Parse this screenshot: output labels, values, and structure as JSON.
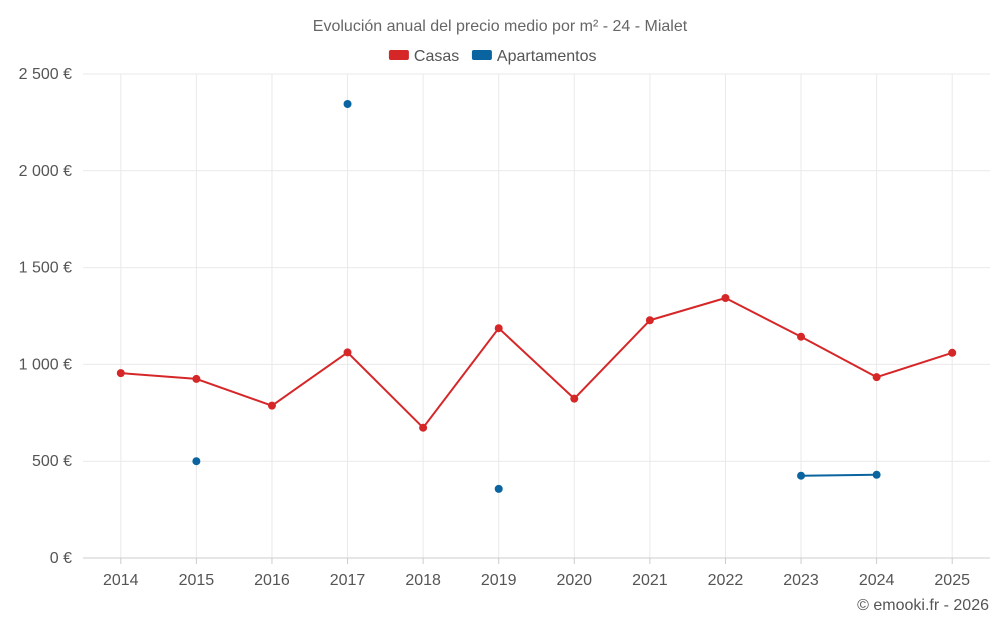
{
  "chart_data": {
    "type": "line",
    "title": "Evolución anual del precio medio por m² - 24 - Mialet",
    "categories": [
      "2014",
      "2015",
      "2016",
      "2017",
      "2018",
      "2019",
      "2020",
      "2021",
      "2022",
      "2023",
      "2024",
      "2025"
    ],
    "series": [
      {
        "name": "Casas",
        "color": "#d62728",
        "values": [
          955,
          925,
          787,
          1062,
          673,
          1187,
          823,
          1228,
          1343,
          1143,
          934,
          1060
        ]
      },
      {
        "name": "Apartamentos",
        "color": "#0a64a0",
        "values": [
          null,
          500,
          null,
          2345,
          null,
          357,
          null,
          null,
          null,
          425,
          430,
          null
        ]
      }
    ],
    "ylim": [
      0,
      2500
    ],
    "y_ticks": [
      0,
      500,
      1000,
      1500,
      2000,
      2500
    ],
    "y_tick_labels": [
      "0 €",
      "500 €",
      "1 000 €",
      "1 500 €",
      "2 000 €",
      "2 500 €"
    ],
    "xlabel": "",
    "ylabel": "",
    "grid": true,
    "legend_position": "top-center"
  },
  "credit": "© emooki.fr - 2026"
}
